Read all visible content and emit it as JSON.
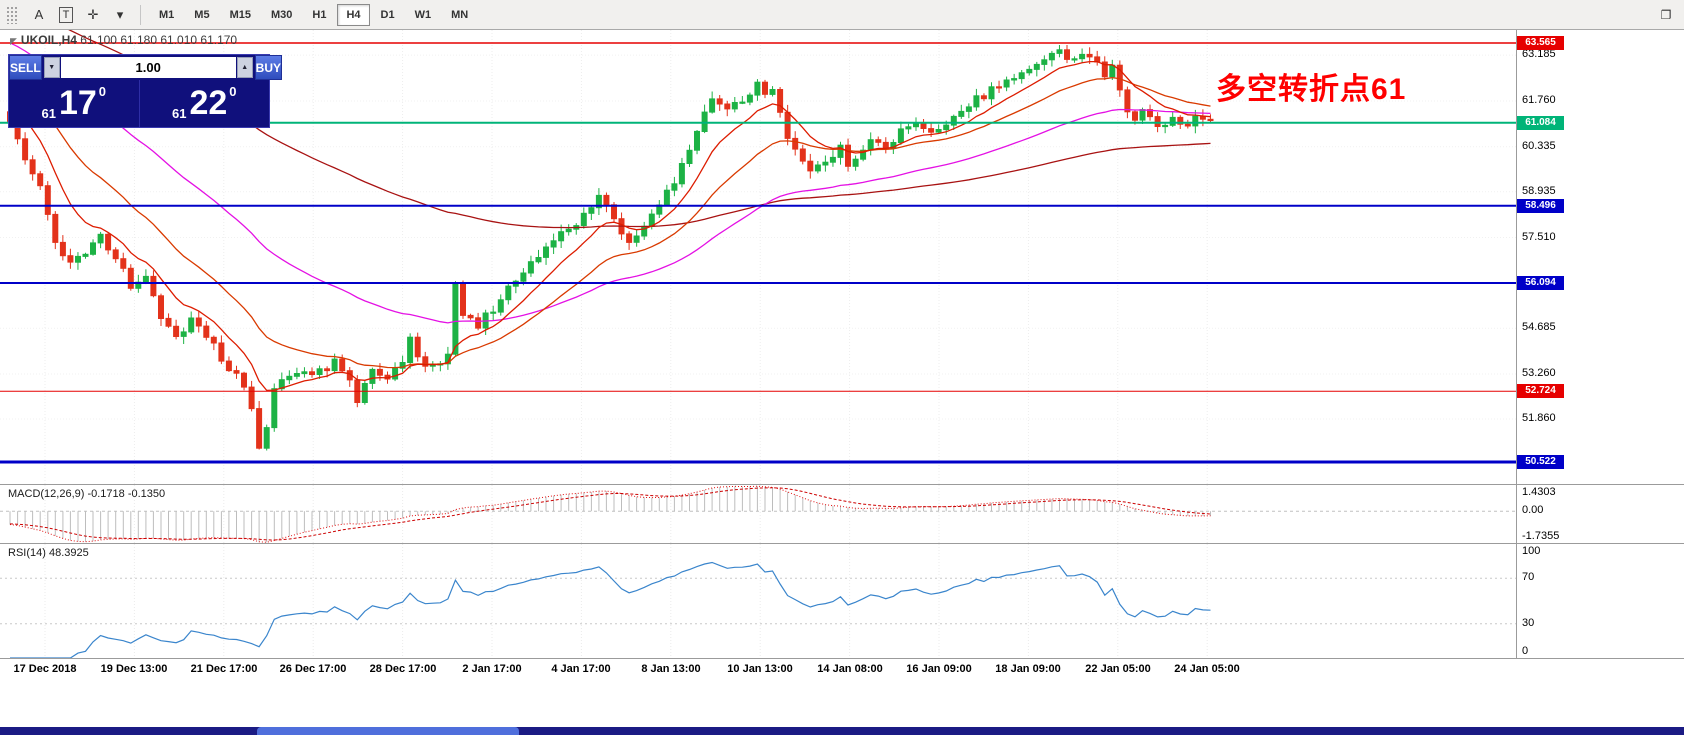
{
  "icons": {
    "caret_down": "▼",
    "caret_up": "▲",
    "dropdown_caret": "▾",
    "text_tool": "A",
    "template_tool": "T",
    "crosshair_tool": "✛",
    "window_icon": "❐",
    "symbol_marker": "◤"
  },
  "toolbar": {
    "timeframes": [
      "M1",
      "M5",
      "M15",
      "M30",
      "H1",
      "H4",
      "D1",
      "W1",
      "MN"
    ],
    "active_timeframe": "H4"
  },
  "chart": {
    "symbol": "UKOIL,H4",
    "ohlc_text": "61.100 61.180 61.010 61.170",
    "open": "61.100",
    "high": "61.180",
    "low": "61.010",
    "close": "61.170",
    "annotation": "多空转折点61",
    "annotation_color": "#ff0000",
    "price_ticks": [
      "63.185",
      "61.760",
      "60.335",
      "58.935",
      "57.510",
      "54.685",
      "53.260",
      "51.860"
    ],
    "lines": [
      {
        "price": "63.565",
        "color": "#e60000",
        "width": 1.5
      },
      {
        "price": "61.084",
        "color": "#00b478",
        "width": 2
      },
      {
        "price": "58.496",
        "color": "#0000c8",
        "width": 2
      },
      {
        "price": "56.094",
        "color": "#0000c8",
        "width": 2
      },
      {
        "price": "52.724",
        "color": "#e60000",
        "width": 1
      },
      {
        "price": "50.522",
        "color": "#0000c8",
        "width": 3
      }
    ]
  },
  "trade_panel": {
    "sell_label": "SELL",
    "buy_label": "BUY",
    "volume": "1.00",
    "sell_price": {
      "small": "61",
      "big": "17",
      "sup": "0"
    },
    "buy_price": {
      "small": "61",
      "big": "22",
      "sup": "0"
    }
  },
  "macd": {
    "label": "MACD(12,26,9) -0.1718 -0.1350",
    "scale": [
      "1.4303",
      "0.00",
      "-1.7355"
    ],
    "range": [
      1.4303,
      -1.7355
    ]
  },
  "rsi": {
    "label": "RSI(14) 48.3925",
    "scale": [
      "100",
      "70",
      "30",
      "0"
    ],
    "levels": [
      70,
      30
    ]
  },
  "time_axis": [
    "17 Dec 2018",
    "19 Dec 13:00",
    "21 Dec 17:00",
    "26 Dec 17:00",
    "28 Dec 17:00",
    "2 Jan 17:00",
    "4 Jan 17:00",
    "8 Jan 13:00",
    "10 Jan 13:00",
    "14 Jan 08:00",
    "16 Jan 09:00",
    "18 Jan 09:00",
    "22 Jan 05:00",
    "24 Jan 05:00"
  ],
  "chart_data": {
    "type": "candlestick",
    "candle_count": 160,
    "last_close": 61.17,
    "up_color": "#1db245",
    "down_color": "#e3321b",
    "close_anchors": [
      [
        0,
        61.25
      ],
      [
        1,
        60.6
      ],
      [
        2,
        59.9
      ],
      [
        3,
        59.6
      ],
      [
        4,
        59.15
      ],
      [
        6,
        57.4
      ],
      [
        8,
        56.7
      ],
      [
        10,
        57.1
      ],
      [
        12,
        57.5
      ],
      [
        14,
        56.9
      ],
      [
        16,
        56.0
      ],
      [
        18,
        56.4
      ],
      [
        20,
        55.1
      ],
      [
        22,
        54.4
      ],
      [
        24,
        55.0
      ],
      [
        26,
        54.5
      ],
      [
        28,
        53.7
      ],
      [
        30,
        53.2
      ],
      [
        31,
        52.9
      ],
      [
        32,
        52.3
      ],
      [
        33,
        50.9
      ],
      [
        34,
        51.7
      ],
      [
        35,
        52.9
      ],
      [
        37,
        53.3
      ],
      [
        40,
        53.2
      ],
      [
        43,
        53.6
      ],
      [
        45,
        53.0
      ],
      [
        46,
        52.5
      ],
      [
        48,
        53.4
      ],
      [
        50,
        53.1
      ],
      [
        52,
        53.6
      ],
      [
        53,
        54.3
      ],
      [
        55,
        53.5
      ],
      [
        57,
        53.6
      ],
      [
        58,
        53.9
      ],
      [
        59,
        56.0
      ],
      [
        60,
        55.2
      ],
      [
        62,
        54.8
      ],
      [
        64,
        55.3
      ],
      [
        66,
        55.9
      ],
      [
        68,
        56.4
      ],
      [
        70,
        56.9
      ],
      [
        72,
        57.4
      ],
      [
        74,
        57.8
      ],
      [
        76,
        58.2
      ],
      [
        78,
        58.85
      ],
      [
        80,
        58.1
      ],
      [
        82,
        57.35
      ],
      [
        84,
        57.9
      ],
      [
        86,
        58.6
      ],
      [
        88,
        59.3
      ],
      [
        90,
        60.2
      ],
      [
        92,
        61.3
      ],
      [
        93,
        61.85
      ],
      [
        95,
        61.4
      ],
      [
        97,
        61.8
      ],
      [
        99,
        62.25
      ],
      [
        100,
        61.9
      ],
      [
        101,
        62.0
      ],
      [
        103,
        60.7
      ],
      [
        105,
        60.0
      ],
      [
        106,
        59.55
      ],
      [
        108,
        59.9
      ],
      [
        110,
        60.3
      ],
      [
        111,
        59.8
      ],
      [
        113,
        60.2
      ],
      [
        114,
        60.65
      ],
      [
        116,
        60.3
      ],
      [
        118,
        60.8
      ],
      [
        120,
        61.1
      ],
      [
        122,
        60.8
      ],
      [
        124,
        61.1
      ],
      [
        126,
        61.45
      ],
      [
        128,
        61.8
      ],
      [
        130,
        62.1
      ],
      [
        132,
        62.45
      ],
      [
        134,
        62.6
      ],
      [
        136,
        62.9
      ],
      [
        138,
        63.25
      ],
      [
        139,
        63.4
      ],
      [
        140,
        62.95
      ],
      [
        142,
        63.1
      ],
      [
        143,
        63.15
      ],
      [
        145,
        62.6
      ],
      [
        146,
        62.85
      ],
      [
        148,
        61.4
      ],
      [
        149,
        61.15
      ],
      [
        150,
        61.6
      ],
      [
        152,
        60.95
      ],
      [
        154,
        61.25
      ],
      [
        156,
        61.05
      ],
      [
        158,
        61.3
      ],
      [
        159,
        61.17
      ]
    ],
    "moving_averages": [
      {
        "period": 120,
        "color": "#a81212"
      },
      {
        "period": 50,
        "color": "#e411e4"
      },
      {
        "period": 22,
        "color": "#d93a00"
      },
      {
        "period": 9,
        "color": "#dd1c00"
      }
    ],
    "indicator_readings": {
      "macd_main": -0.1718,
      "macd_signal": -0.135,
      "rsi": 48.3925
    }
  }
}
